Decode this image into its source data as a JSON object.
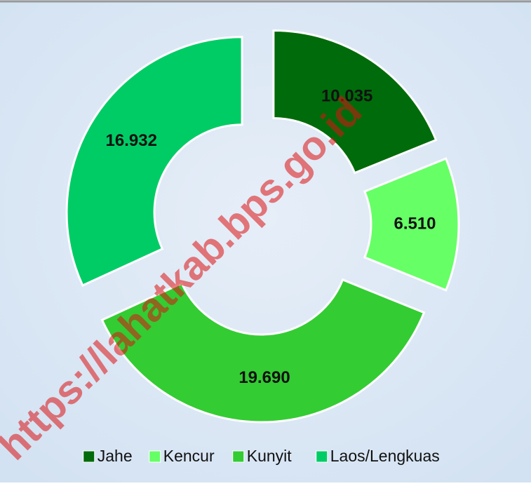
{
  "chart_data": {
    "type": "donut",
    "categories": [
      "Jahe",
      "Kencur",
      "Kunyit",
      "Laos/Lengkuas"
    ],
    "values": [
      10.035,
      6.51,
      19.69,
      16.932
    ],
    "value_labels": [
      "10.035",
      "6.510",
      "19.690",
      "16.932"
    ],
    "colors": [
      "#006b0a",
      "#66ff66",
      "#33cc33",
      "#00cc66"
    ],
    "legend": "bottom"
  },
  "watermark": "https://lahatkab.bps.go.id"
}
